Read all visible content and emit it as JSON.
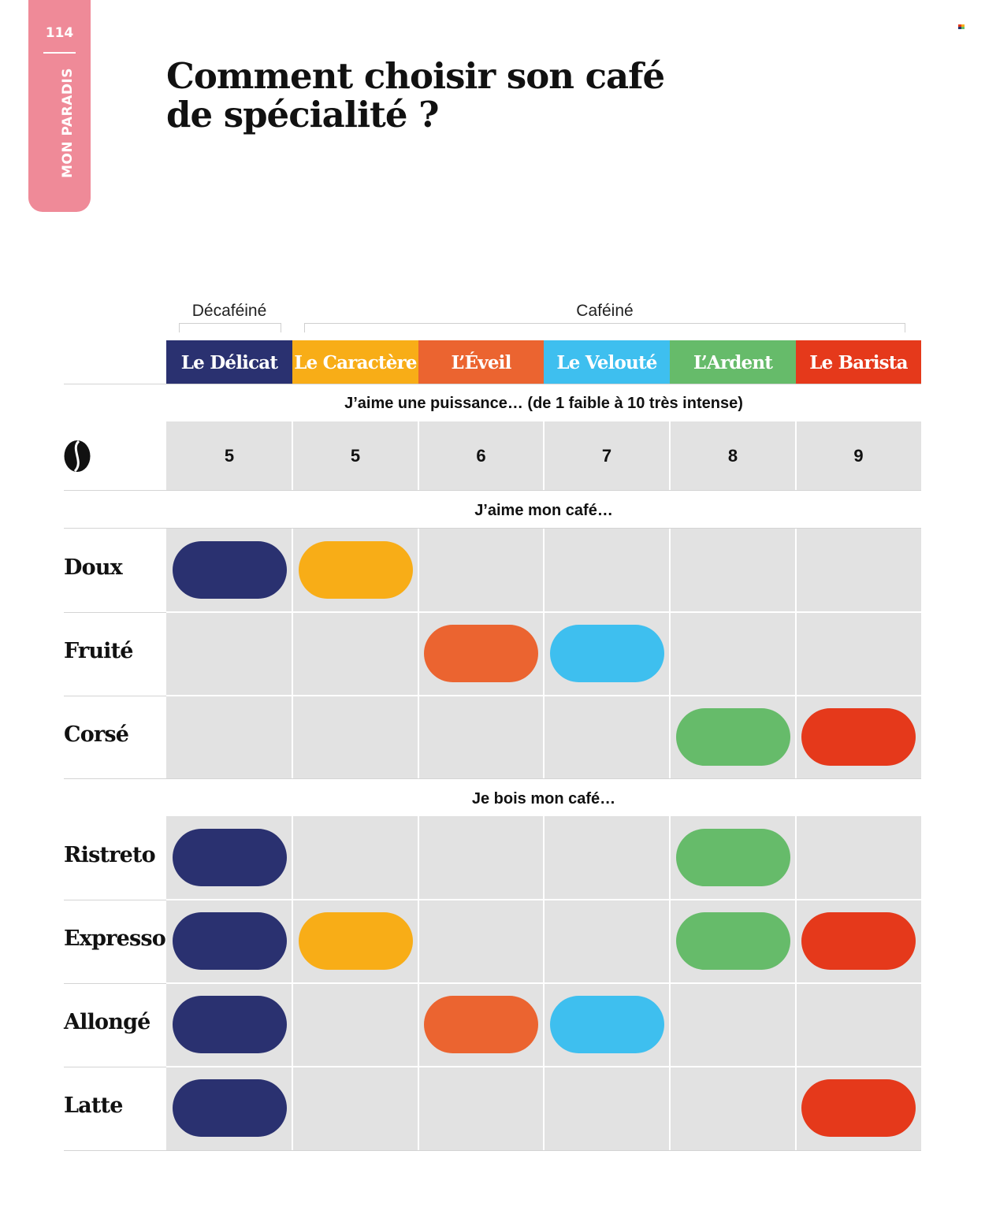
{
  "page": {
    "number": "114",
    "section": "MON PARADIS",
    "title_lines": [
      "Comment choisir son café",
      "de spécialité ?"
    ]
  },
  "table": {
    "groups": [
      {
        "label": "Décaféiné",
        "span": 1
      },
      {
        "label": "Caféiné",
        "span": 5
      }
    ],
    "coffees": [
      {
        "name": "Le Délicat",
        "color": "#2a3170"
      },
      {
        "name": "Le Caractère",
        "color": "#f8ad17"
      },
      {
        "name": "L’Éveil",
        "color": "#eb6430"
      },
      {
        "name": "Le Velouté",
        "color": "#3ebfef"
      },
      {
        "name": "L’Ardent",
        "color": "#66bb6a"
      },
      {
        "name": "Le Barista",
        "color": "#e5391b"
      }
    ],
    "strength": {
      "heading": "J’aime une puissance… (de 1 faible à 10 très intense)",
      "icon": "coffee-bean-icon",
      "values": [
        "5",
        "5",
        "6",
        "7",
        "8",
        "9"
      ]
    },
    "taste": {
      "heading": "J’aime mon café…",
      "rows": [
        {
          "label": "Doux",
          "matches": [
            true,
            true,
            false,
            false,
            false,
            false
          ]
        },
        {
          "label": "Fruité",
          "matches": [
            false,
            false,
            true,
            true,
            false,
            false
          ]
        },
        {
          "label": "Corsé",
          "matches": [
            false,
            false,
            false,
            false,
            true,
            true
          ]
        }
      ]
    },
    "drink": {
      "heading": "Je bois mon café…",
      "rows": [
        {
          "label": "Ristreto",
          "matches": [
            true,
            false,
            false,
            false,
            true,
            false
          ]
        },
        {
          "label": "Expresso",
          "matches": [
            true,
            true,
            false,
            false,
            true,
            true
          ]
        },
        {
          "label": "Allongé",
          "matches": [
            true,
            false,
            true,
            true,
            false,
            false
          ]
        },
        {
          "label": "Latte",
          "matches": [
            true,
            false,
            false,
            false,
            false,
            true
          ]
        }
      ]
    }
  }
}
